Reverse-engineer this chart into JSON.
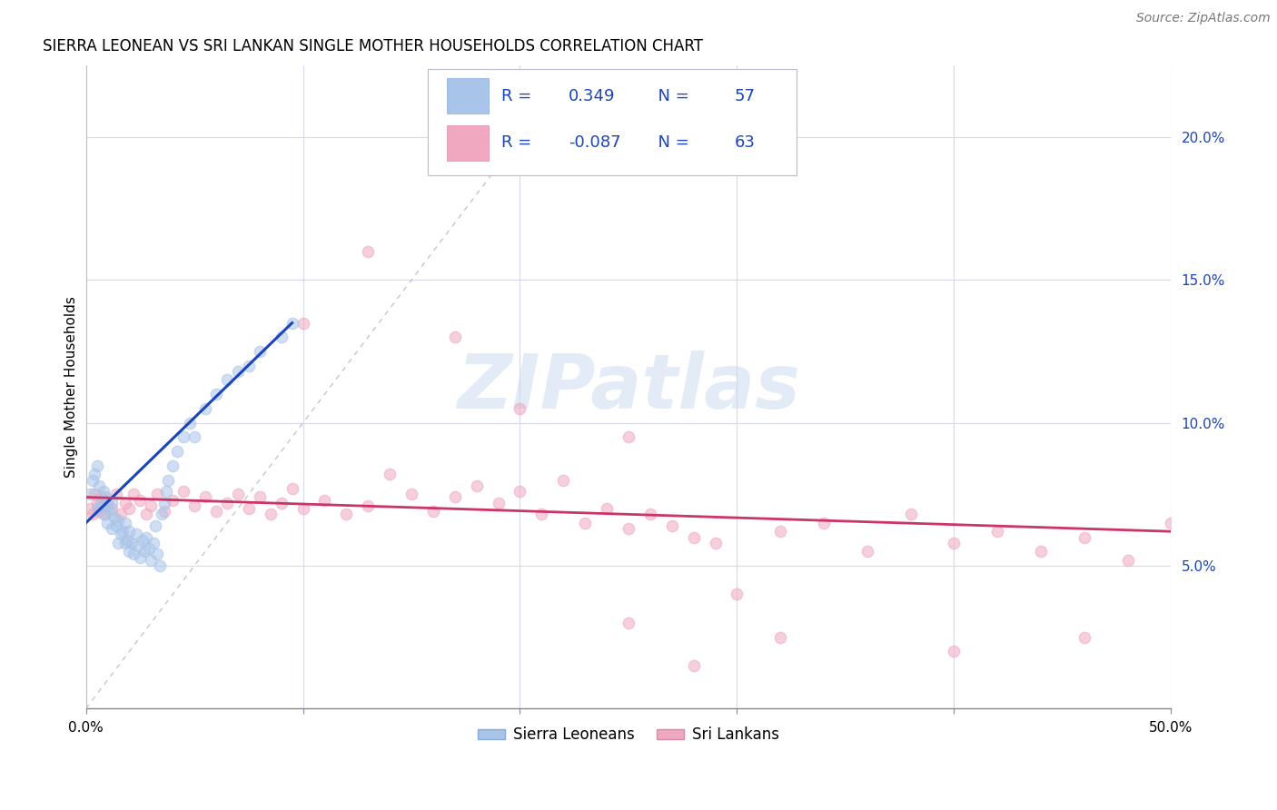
{
  "title": "SIERRA LEONEAN VS SRI LANKAN SINGLE MOTHER HOUSEHOLDS CORRELATION CHART",
  "source": "Source: ZipAtlas.com",
  "ylabel": "Single Mother Households",
  "xlabel": "",
  "xlim": [
    0.0,
    0.5
  ],
  "ylim": [
    0.0,
    0.225
  ],
  "xticks": [
    0.0,
    0.1,
    0.2,
    0.3,
    0.4,
    0.5
  ],
  "xtick_labels_show": [
    "0.0%",
    "50.0%"
  ],
  "xtick_labels_show_pos": [
    0.0,
    0.5
  ],
  "yticks_right": [
    0.05,
    0.1,
    0.15,
    0.2
  ],
  "ytick_labels_right": [
    "5.0%",
    "10.0%",
    "15.0%",
    "20.0%"
  ],
  "background_color": "#ffffff",
  "grid_color": "#d8d8e8",
  "blue_color": "#a8c4e8",
  "pink_color": "#f0a8c0",
  "blue_line_color": "#1a44bb",
  "pink_line_color": "#cc3366",
  "diag_line_color": "#b0b8cc",
  "legend_R1": "0.349",
  "legend_N1": "57",
  "legend_R2": "-0.087",
  "legend_N2": "63",
  "legend_label1": "Sierra Leoneans",
  "legend_label2": "Sri Lankans",
  "legend_text_color": "#1a44bb",
  "watermark_text": "ZIPatlas",
  "watermark_color": "#c8d8f0",
  "title_fontsize": 12,
  "source_fontsize": 10,
  "tick_fontsize": 11,
  "ylabel_fontsize": 11,
  "legend_fontsize": 13,
  "marker_size": 80,
  "scatter_alpha": 0.55,
  "blue_scatter_x": [
    0.002,
    0.003,
    0.004,
    0.005,
    0.005,
    0.006,
    0.007,
    0.008,
    0.008,
    0.009,
    0.01,
    0.01,
    0.011,
    0.012,
    0.012,
    0.013,
    0.014,
    0.015,
    0.015,
    0.016,
    0.017,
    0.018,
    0.018,
    0.019,
    0.02,
    0.02,
    0.021,
    0.022,
    0.023,
    0.024,
    0.025,
    0.026,
    0.027,
    0.028,
    0.029,
    0.03,
    0.031,
    0.032,
    0.033,
    0.034,
    0.035,
    0.036,
    0.037,
    0.038,
    0.04,
    0.042,
    0.045,
    0.048,
    0.05,
    0.055,
    0.06,
    0.065,
    0.07,
    0.075,
    0.08,
    0.09,
    0.095
  ],
  "blue_scatter_y": [
    0.075,
    0.08,
    0.082,
    0.085,
    0.07,
    0.078,
    0.072,
    0.068,
    0.076,
    0.074,
    0.065,
    0.071,
    0.069,
    0.063,
    0.072,
    0.067,
    0.064,
    0.058,
    0.066,
    0.061,
    0.062,
    0.058,
    0.065,
    0.059,
    0.055,
    0.062,
    0.058,
    0.054,
    0.061,
    0.057,
    0.053,
    0.059,
    0.055,
    0.06,
    0.056,
    0.052,
    0.058,
    0.064,
    0.054,
    0.05,
    0.068,
    0.072,
    0.076,
    0.08,
    0.085,
    0.09,
    0.095,
    0.1,
    0.095,
    0.105,
    0.11,
    0.115,
    0.118,
    0.12,
    0.125,
    0.13,
    0.135
  ],
  "pink_scatter_x": [
    0.002,
    0.003,
    0.004,
    0.005,
    0.006,
    0.007,
    0.008,
    0.009,
    0.01,
    0.012,
    0.014,
    0.016,
    0.018,
    0.02,
    0.022,
    0.025,
    0.028,
    0.03,
    0.033,
    0.036,
    0.04,
    0.045,
    0.05,
    0.055,
    0.06,
    0.065,
    0.07,
    0.075,
    0.08,
    0.085,
    0.09,
    0.095,
    0.1,
    0.11,
    0.12,
    0.13,
    0.14,
    0.15,
    0.16,
    0.17,
    0.18,
    0.19,
    0.2,
    0.21,
    0.22,
    0.23,
    0.24,
    0.25,
    0.26,
    0.27,
    0.28,
    0.29,
    0.3,
    0.32,
    0.34,
    0.36,
    0.38,
    0.4,
    0.42,
    0.44,
    0.46,
    0.48,
    0.5
  ],
  "pink_scatter_y": [
    0.07,
    0.068,
    0.075,
    0.072,
    0.069,
    0.074,
    0.071,
    0.068,
    0.073,
    0.07,
    0.075,
    0.068,
    0.072,
    0.07,
    0.075,
    0.073,
    0.068,
    0.071,
    0.075,
    0.069,
    0.073,
    0.076,
    0.071,
    0.074,
    0.069,
    0.072,
    0.075,
    0.07,
    0.074,
    0.068,
    0.072,
    0.077,
    0.07,
    0.073,
    0.068,
    0.071,
    0.082,
    0.075,
    0.069,
    0.074,
    0.078,
    0.072,
    0.076,
    0.068,
    0.08,
    0.065,
    0.07,
    0.063,
    0.068,
    0.064,
    0.06,
    0.058,
    0.04,
    0.062,
    0.065,
    0.055,
    0.068,
    0.058,
    0.062,
    0.055,
    0.06,
    0.052,
    0.065
  ],
  "pink_extra_low": [
    [
      0.25,
      0.03
    ],
    [
      0.28,
      0.015
    ],
    [
      0.32,
      0.025
    ],
    [
      0.4,
      0.02
    ],
    [
      0.46,
      0.025
    ]
  ],
  "pink_extra_high": [
    [
      0.1,
      0.135
    ],
    [
      0.13,
      0.16
    ],
    [
      0.17,
      0.13
    ],
    [
      0.2,
      0.105
    ],
    [
      0.25,
      0.095
    ]
  ]
}
